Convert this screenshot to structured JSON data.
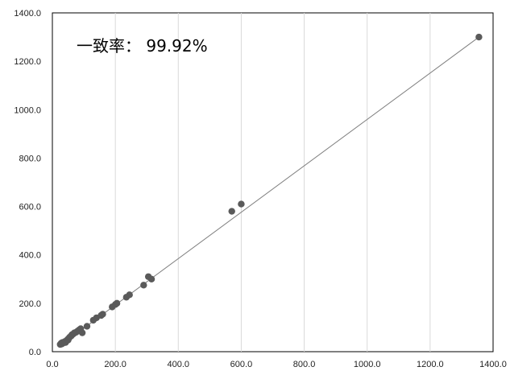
{
  "chart_data": {
    "type": "scatter",
    "title": "",
    "xlabel": "",
    "ylabel": "",
    "xlim": [
      0,
      1400
    ],
    "ylim": [
      0,
      1400
    ],
    "x_ticks": [
      "0.0",
      "200.0",
      "400.0",
      "600.0",
      "800.0",
      "1000.0",
      "1200.0",
      "1400.0"
    ],
    "y_ticks": [
      "0.0",
      "200.0",
      "400.0",
      "600.0",
      "800.0",
      "1000.0",
      "1200.0",
      "1400.0"
    ],
    "x_tick_values": [
      0,
      200,
      400,
      600,
      800,
      1000,
      1200,
      1400
    ],
    "y_tick_values": [
      0,
      200,
      400,
      600,
      800,
      1000,
      1200,
      1400
    ],
    "grid": "vertical",
    "legend": "none",
    "annotation": "一致率：  99.92%",
    "trendline": {
      "x": [
        28,
        1355
      ],
      "y": [
        28,
        1300
      ]
    },
    "colors": {
      "points": "#5a5a5a",
      "trendline": "#7f7f7f",
      "grid": "#d9d9d9",
      "axis": "#000000"
    },
    "series": [
      {
        "x": [
          25,
          28,
          30,
          32,
          35,
          38,
          40,
          42,
          45,
          48,
          50,
          52,
          55,
          60,
          62,
          65,
          68,
          70,
          75,
          80,
          85,
          90,
          95,
          110,
          130,
          140,
          155,
          160,
          190,
          200,
          205,
          235,
          245,
          290,
          305,
          315,
          570,
          600,
          1355
        ],
        "y": [
          30,
          35,
          32,
          38,
          36,
          40,
          42,
          38,
          45,
          50,
          48,
          55,
          60,
          65,
          70,
          72,
          75,
          78,
          80,
          85,
          90,
          95,
          78,
          105,
          130,
          140,
          150,
          155,
          185,
          195,
          200,
          225,
          235,
          275,
          310,
          300,
          580,
          610,
          1300
        ]
      }
    ]
  }
}
